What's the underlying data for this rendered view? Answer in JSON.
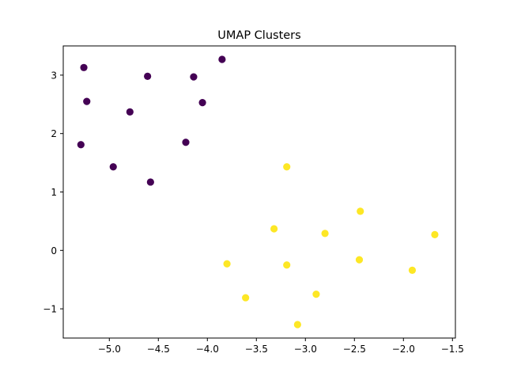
{
  "chart_data": {
    "type": "scatter",
    "title": "UMAP Clusters",
    "xlabel": "",
    "ylabel": "",
    "xlim": [
      -5.47,
      -1.47
    ],
    "ylim": [
      -1.5,
      3.5
    ],
    "x_ticks": [
      -5.0,
      -4.5,
      -4.0,
      -3.5,
      -3.0,
      -2.5,
      -2.0,
      -1.5
    ],
    "x_tick_labels": [
      "−5.0",
      "−4.5",
      "−4.0",
      "−3.5",
      "−3.0",
      "−2.5",
      "−2.0",
      "−1.5"
    ],
    "y_ticks": [
      -1,
      0,
      1,
      2,
      3
    ],
    "y_tick_labels": [
      "−1",
      "0",
      "1",
      "2",
      "3"
    ],
    "grid": false,
    "legend": "none",
    "series": [
      {
        "color": "#440154",
        "points": [
          {
            "x": -5.26,
            "y": 3.13
          },
          {
            "x": -5.23,
            "y": 2.55
          },
          {
            "x": -5.29,
            "y": 1.81
          },
          {
            "x": -4.96,
            "y": 1.43
          },
          {
            "x": -4.79,
            "y": 2.37
          },
          {
            "x": -4.61,
            "y": 2.98
          },
          {
            "x": -4.58,
            "y": 1.17
          },
          {
            "x": -4.22,
            "y": 1.85
          },
          {
            "x": -4.14,
            "y": 2.97
          },
          {
            "x": -4.05,
            "y": 2.53
          },
          {
            "x": -3.85,
            "y": 3.27
          }
        ]
      },
      {
        "color": "#fde725",
        "points": [
          {
            "x": -3.19,
            "y": 1.43
          },
          {
            "x": -3.32,
            "y": 0.37
          },
          {
            "x": -3.8,
            "y": -0.23
          },
          {
            "x": -3.61,
            "y": -0.81
          },
          {
            "x": -3.19,
            "y": -0.25
          },
          {
            "x": -3.08,
            "y": -1.27
          },
          {
            "x": -2.89,
            "y": -0.75
          },
          {
            "x": -2.8,
            "y": 0.29
          },
          {
            "x": -2.44,
            "y": 0.67
          },
          {
            "x": -2.45,
            "y": -0.16
          },
          {
            "x": -1.91,
            "y": -0.34
          },
          {
            "x": -1.68,
            "y": 0.27
          }
        ]
      }
    ]
  }
}
